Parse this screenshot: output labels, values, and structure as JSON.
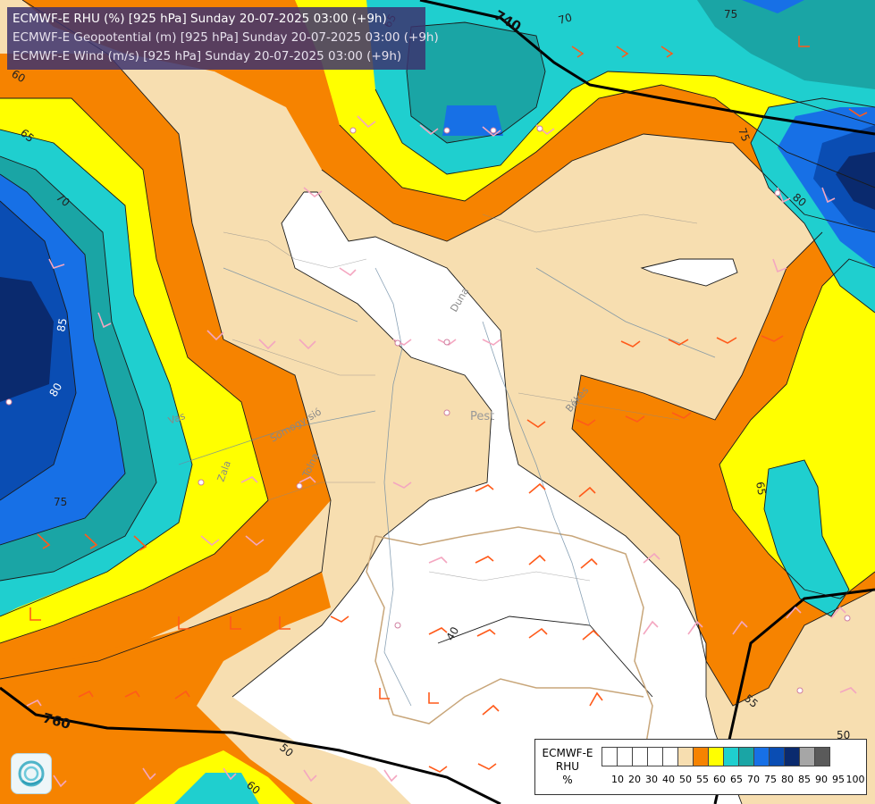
{
  "header": {
    "line1": "ECMWF-E RHU (%) [925 hPa] Sunday 20-07-2025 03:00 (+9h)",
    "line2": "ECMWF-E Geopotential (m) [925 hPa] Sunday 20-07-2025 03:00 (+9h)",
    "line3": "ECMWF-E Wind (m/s) [925 hPa] Sunday 20-07-2025 03:00 (+9h)"
  },
  "contour_labels": {
    "c65_nw": "65",
    "c70_nw": "70",
    "c80_w": "80",
    "c85_w": "85",
    "c75_w": "75",
    "c60_top": "60",
    "c65_top": "65",
    "c70_top": "70",
    "c75_top": "75",
    "c75_ne": "75",
    "c80_ne": "80",
    "c65_e": "65",
    "c55_se": "55",
    "c50_se": "50",
    "c40_s": "40",
    "c50_s": "50",
    "c60_sw": "60",
    "geo_740": "740",
    "geo_760": "760"
  },
  "place_labels": {
    "duna": "Duna",
    "pest": "Pest",
    "bekes": "Békés",
    "vas": "Vas",
    "somogy": "Somogy-sió",
    "tolna": "Tolna",
    "zala": "Zala"
  },
  "legend": {
    "title_line1": "ECMWF-E",
    "title_line2": "RHU",
    "title_line3": "%",
    "colors": [
      "#ffffff",
      "#ffffff",
      "#ffffff",
      "#ffffff",
      "#ffffff",
      "#f7deb0",
      "#f68300",
      "#ffff00",
      "#1fcfcf",
      "#1aa5a5",
      "#1770e6",
      "#0a4db3",
      "#0a2a6e",
      "#a6a6a6",
      "#5a5a5a"
    ],
    "ticks": [
      "10",
      "20",
      "30",
      "40",
      "50",
      "55",
      "60",
      "65",
      "70",
      "75",
      "80",
      "85",
      "90",
      "95",
      "100"
    ]
  },
  "logo": {
    "icon": "ecmwf-swirl-icon"
  }
}
